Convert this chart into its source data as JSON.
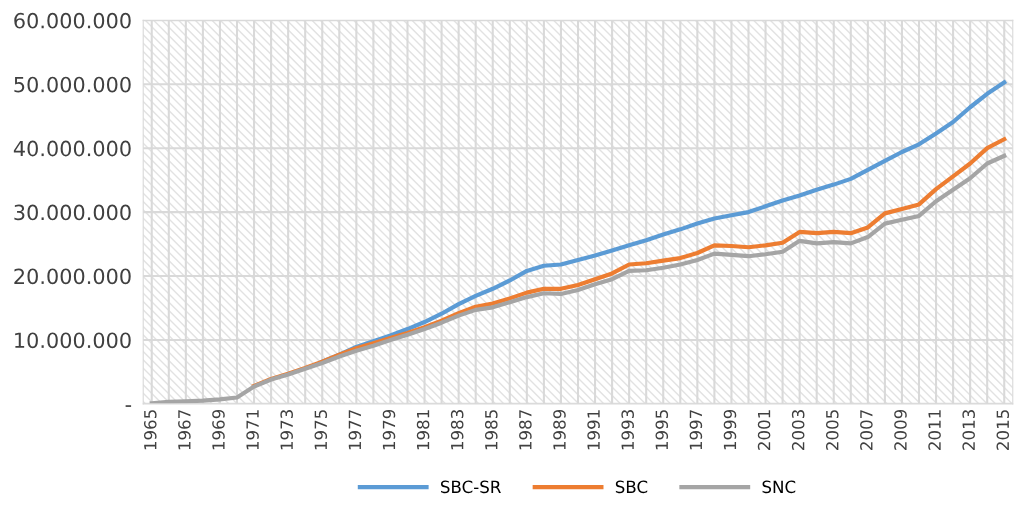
{
  "chart_data": {
    "type": "line",
    "categories": [
      "1965",
      null,
      "1967",
      null,
      "1969",
      null,
      "1971",
      null,
      "1973",
      null,
      "1975",
      null,
      "1977",
      null,
      "1979",
      null,
      "1981",
      null,
      "1983",
      null,
      "1985",
      null,
      "1987",
      null,
      "1989",
      null,
      "1991",
      null,
      "1993",
      null,
      "1995",
      null,
      "1997",
      null,
      "1999",
      null,
      "2001",
      null,
      "2003",
      null,
      "2005",
      null,
      "2007",
      null,
      "2009",
      null,
      "2011",
      null,
      "2013",
      null,
      "2015"
    ],
    "series": [
      {
        "name": "SBC-SR",
        "color": "#5b9bd5",
        "values": [
          null,
          null,
          null,
          null,
          null,
          null,
          null,
          null,
          null,
          null,
          6600000,
          7700000,
          8900000,
          9800000,
          10700000,
          11700000,
          12800000,
          14100000,
          15600000,
          16900000,
          18000000,
          19300000,
          20800000,
          21600000,
          21800000,
          22500000,
          23200000,
          24000000,
          24800000,
          25600000,
          26500000,
          27300000,
          28200000,
          29000000,
          29500000,
          30000000,
          30900000,
          31800000,
          32600000,
          33500000,
          34300000,
          35200000,
          36600000,
          38000000,
          39400000,
          40600000,
          42300000,
          44100000,
          46400000,
          48500000,
          50300000
        ]
      },
      {
        "name": "SBC",
        "color": "#ed7d31",
        "values": [
          null,
          null,
          null,
          null,
          null,
          null,
          2800000,
          3900000,
          4700000,
          5600000,
          6600000,
          7700000,
          8700000,
          9500000,
          10300000,
          11100000,
          12000000,
          13000000,
          14200000,
          15200000,
          15700000,
          16500000,
          17400000,
          18000000,
          18000000,
          18600000,
          19500000,
          20400000,
          21800000,
          22000000,
          22400000,
          22800000,
          23600000,
          24800000,
          24700000,
          24500000,
          24800000,
          25200000,
          26900000,
          26700000,
          26900000,
          26700000,
          27600000,
          29800000,
          30500000,
          31200000,
          33600000,
          35600000,
          37600000,
          40000000,
          41400000
        ]
      },
      {
        "name": "SNC",
        "color": "#a5a5a5",
        "values": [
          100000,
          300000,
          400000,
          500000,
          700000,
          1000000,
          2700000,
          3800000,
          4600000,
          5500000,
          6400000,
          7400000,
          8300000,
          9100000,
          10000000,
          10800000,
          11700000,
          12700000,
          13800000,
          14700000,
          15100000,
          15900000,
          16700000,
          17300000,
          17200000,
          17800000,
          18700000,
          19500000,
          20800000,
          20900000,
          21300000,
          21800000,
          22500000,
          23500000,
          23300000,
          23100000,
          23400000,
          23800000,
          25500000,
          25100000,
          25300000,
          25100000,
          26100000,
          28200000,
          28800000,
          29400000,
          31700000,
          33500000,
          35300000,
          37600000,
          38800000
        ]
      }
    ],
    "ylim": [
      0,
      60000000
    ],
    "yticks": [
      {
        "value": 0,
        "label": "-"
      },
      {
        "value": 10000000,
        "label": "10.000.000"
      },
      {
        "value": 20000000,
        "label": "20.000.000"
      },
      {
        "value": 30000000,
        "label": "30.000.000"
      },
      {
        "value": 40000000,
        "label": "40.000.000"
      },
      {
        "value": 50000000,
        "label": "50.000.000"
      },
      {
        "value": 60000000,
        "label": "60.000.000"
      }
    ],
    "grid": true,
    "legend": "bottom",
    "marker": "none",
    "line_style": "solid"
  }
}
